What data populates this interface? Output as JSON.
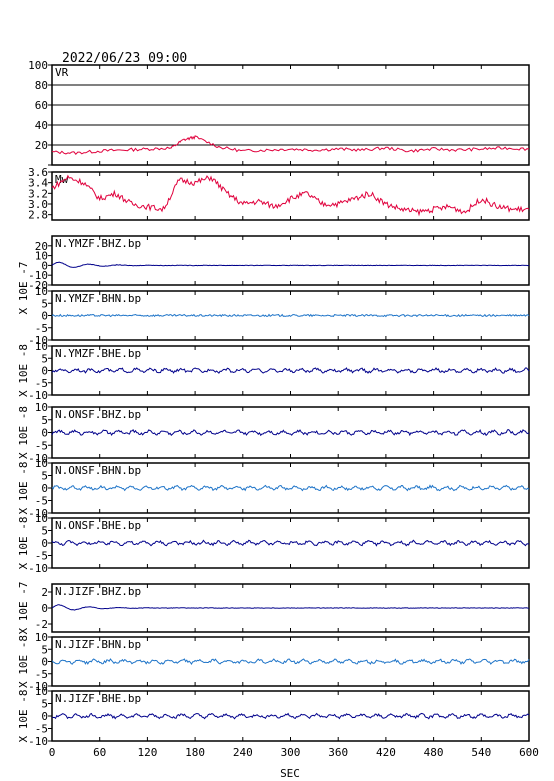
{
  "chart_data": [
    {
      "type": "line",
      "name_label": "VR",
      "ylim": [
        0,
        100
      ],
      "yticks": [
        0,
        20,
        40,
        60,
        80,
        100
      ],
      "ytick_labels": [
        "",
        "20",
        "40",
        "60",
        "80",
        "100"
      ],
      "grid": true,
      "unit": "",
      "color": "#e0003c",
      "wave": "vr",
      "series": [
        {
          "x": [
            0,
            30,
            60,
            90,
            120,
            150,
            165,
            180,
            210,
            240,
            270,
            300,
            330,
            360,
            390,
            420,
            450,
            480,
            510,
            540,
            570,
            600
          ],
          "y": [
            13,
            12,
            14,
            15,
            16,
            17,
            25,
            28,
            18,
            14,
            15,
            16,
            15,
            16,
            15,
            17,
            14,
            16,
            15,
            16,
            17,
            16
          ]
        }
      ]
    },
    {
      "type": "line",
      "name_label": "Mw",
      "ylim": [
        2.7,
        3.6
      ],
      "yticks": [
        2.8,
        3.0,
        3.2,
        3.4,
        3.6
      ],
      "ytick_labels": [
        "2.8",
        "3.0",
        "3.2",
        "3.4",
        "3.6"
      ],
      "grid": false,
      "unit": "",
      "color": "#e0003c",
      "wave": "mw",
      "series": [
        {
          "x": [
            0,
            20,
            40,
            60,
            80,
            100,
            120,
            140,
            160,
            180,
            200,
            220,
            240,
            260,
            280,
            300,
            320,
            340,
            360,
            380,
            400,
            420,
            440,
            460,
            480,
            500,
            520,
            540,
            560,
            580,
            600
          ],
          "y": [
            3.3,
            3.5,
            3.4,
            3.1,
            3.2,
            3.0,
            2.95,
            2.9,
            3.45,
            3.4,
            3.5,
            3.2,
            3.0,
            3.05,
            2.95,
            3.1,
            3.2,
            3.0,
            3.0,
            3.1,
            3.2,
            3.0,
            2.9,
            2.85,
            2.9,
            2.95,
            2.85,
            3.1,
            2.95,
            2.9,
            2.9
          ]
        }
      ]
    },
    {
      "type": "line",
      "name_label": "N.YMZF.BHZ.bp",
      "ylim": [
        -20,
        30
      ],
      "yticks": [
        -20,
        -10,
        0,
        10,
        20
      ],
      "ytick_labels": [
        "-20",
        "-10",
        "0",
        "10",
        "20"
      ],
      "grid": false,
      "unit": "X 10E -7",
      "color": "#00008b",
      "wave": "decay"
    },
    {
      "type": "line",
      "name_label": "N.YMZF.BHN.bp",
      "ylim": [
        -10,
        10
      ],
      "yticks": [
        -10,
        -5,
        0,
        5,
        10
      ],
      "ytick_labels": [
        "-10",
        "-5",
        "0",
        "5",
        "10"
      ],
      "grid": false,
      "unit": "X 10E -8",
      "color": "#1e74c8",
      "wave": "flat"
    },
    {
      "type": "line",
      "name_label": "N.YMZF.BHE.bp",
      "ylim": [
        -10,
        10
      ],
      "yticks": [
        -10,
        -5,
        0,
        5,
        10
      ],
      "ytick_labels": [
        "-10",
        "-5",
        "0",
        "5",
        "10"
      ],
      "grid": false,
      "unit": "X 10E -8",
      "color": "#00008b",
      "wave": "wiggle"
    },
    {
      "type": "line",
      "name_label": "N.ONSF.BHZ.bp",
      "ylim": [
        -10,
        10
      ],
      "yticks": [
        -10,
        -5,
        0,
        5,
        10
      ],
      "ytick_labels": [
        "-10",
        "-5",
        "0",
        "5",
        "10"
      ],
      "grid": false,
      "unit": "X 10E -8",
      "color": "#00008b",
      "wave": "wiggle"
    },
    {
      "type": "line",
      "name_label": "N.ONSF.BHN.bp",
      "ylim": [
        -10,
        10
      ],
      "yticks": [
        -10,
        -5,
        0,
        5,
        10
      ],
      "ytick_labels": [
        "-10",
        "-5",
        "0",
        "5",
        "10"
      ],
      "grid": false,
      "unit": "X 10E -8",
      "color": "#1e74c8",
      "wave": "wiggle"
    },
    {
      "type": "line",
      "name_label": "N.ONSF.BHE.bp",
      "ylim": [
        -10,
        10
      ],
      "yticks": [
        -10,
        -5,
        0,
        5,
        10
      ],
      "ytick_labels": [
        "-10",
        "-5",
        "0",
        "5",
        "10"
      ],
      "grid": false,
      "unit": "X 10E -8",
      "color": "#00008b",
      "wave": "wiggle"
    },
    {
      "type": "line",
      "name_label": "N.JIZF.BHZ.bp",
      "ylim": [
        -3,
        3
      ],
      "yticks": [
        -2,
        0,
        2
      ],
      "ytick_labels": [
        "-2",
        "0",
        "2"
      ],
      "grid": false,
      "unit": "X 10E -7",
      "color": "#00008b",
      "wave": "decay"
    },
    {
      "type": "line",
      "name_label": "N.JIZF.BHN.bp",
      "ylim": [
        -10,
        10
      ],
      "yticks": [
        -10,
        -5,
        0,
        5,
        10
      ],
      "ytick_labels": [
        "-10",
        "-5",
        "0",
        "5",
        "10"
      ],
      "grid": false,
      "unit": "X 10E -8",
      "color": "#1e74c8",
      "wave": "wiggle"
    },
    {
      "type": "line",
      "name_label": "N.JIZF.BHE.bp",
      "ylim": [
        -10,
        10
      ],
      "yticks": [
        -10,
        -5,
        0,
        5,
        10
      ],
      "ytick_labels": [
        "-10",
        "-5",
        "0",
        "5",
        "10"
      ],
      "grid": false,
      "unit": "X 10E -8",
      "color": "#00008b",
      "wave": "wiggle"
    }
  ],
  "header": {
    "timestamp": "2022/06/23 09:00"
  },
  "xaxis": {
    "label": "SEC",
    "xlim": [
      0,
      600
    ],
    "ticks": [
      0,
      60,
      120,
      180,
      240,
      300,
      360,
      420,
      480,
      540,
      600
    ]
  }
}
